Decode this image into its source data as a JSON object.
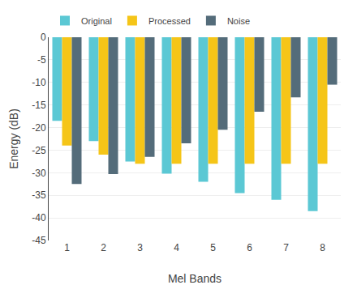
{
  "chart_data": {
    "type": "bar",
    "categories": [
      1,
      2,
      3,
      4,
      5,
      6,
      7,
      8
    ],
    "series": [
      {
        "name": "Original",
        "color": "#5BC8D4",
        "values": [
          -18.5,
          -23.0,
          -27.5,
          -30.2,
          -32.0,
          -34.5,
          -36.0,
          -38.5
        ]
      },
      {
        "name": "Processed",
        "color": "#F5C518",
        "values": [
          -24.0,
          -26.0,
          -28.0,
          -28.0,
          -28.0,
          -28.0,
          -28.0,
          -28.0
        ]
      },
      {
        "name": "Noise",
        "color": "#546C7A",
        "values": [
          -32.5,
          -30.3,
          -26.5,
          -23.5,
          -20.5,
          -16.5,
          -13.3,
          -10.5
        ]
      }
    ],
    "xlabel": "Mel Bands",
    "ylabel": "Energy (dB)",
    "ylim": [
      -45,
      0
    ],
    "yticks": [
      0,
      -5,
      -10,
      -15,
      -20,
      -25,
      -30,
      -35,
      -40,
      -45
    ],
    "grid": true,
    "legend": "upper left"
  }
}
